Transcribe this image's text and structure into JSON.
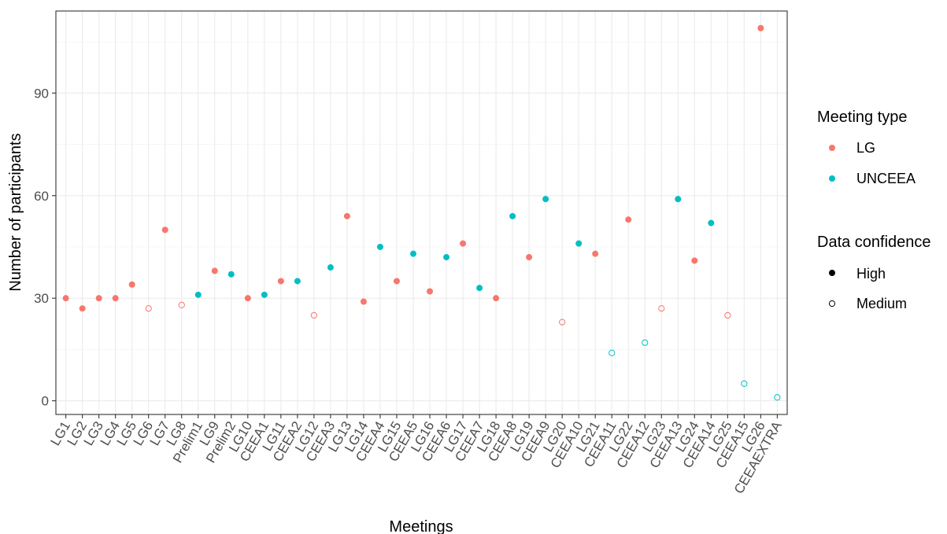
{
  "chart_data": {
    "type": "scatter",
    "xlabel": "Meetings",
    "ylabel": "Number of participants",
    "ylim": [
      -4,
      114
    ],
    "yticks": [
      0,
      30,
      60,
      90
    ],
    "grid": true,
    "legend_position": "right",
    "colors": {
      "LG": "#F8766D",
      "UNCEEA": "#00BFC4"
    },
    "categories": [
      "LG1",
      "LG2",
      "LG3",
      "LG4",
      "LG5",
      "LG6",
      "LG7",
      "LG8",
      "Prelim1",
      "LG9",
      "Prelim2",
      "LG10",
      "CEEA1",
      "LG11",
      "CEEA2",
      "LG12",
      "CEEA3",
      "LG13",
      "LG14",
      "CEEA4",
      "LG15",
      "CEEA5",
      "LG16",
      "CEEA6",
      "LG17",
      "CEEA7",
      "LG18",
      "CEEA8",
      "LG19",
      "CEEA9",
      "LG20",
      "CEEA10",
      "LG21",
      "CEEA11",
      "LG22",
      "CEEA12",
      "LG23",
      "CEEA13",
      "LG24",
      "CEEA14",
      "LG25",
      "CEEA15",
      "LG26",
      "CEEAEXTRA"
    ],
    "points": [
      {
        "x": "LG1",
        "y": 30,
        "type": "LG",
        "confidence": "High"
      },
      {
        "x": "LG2",
        "y": 27,
        "type": "LG",
        "confidence": "High"
      },
      {
        "x": "LG3",
        "y": 30,
        "type": "LG",
        "confidence": "High"
      },
      {
        "x": "LG4",
        "y": 30,
        "type": "LG",
        "confidence": "High"
      },
      {
        "x": "LG5",
        "y": 34,
        "type": "LG",
        "confidence": "High"
      },
      {
        "x": "LG6",
        "y": 27,
        "type": "LG",
        "confidence": "Medium"
      },
      {
        "x": "LG7",
        "y": 50,
        "type": "LG",
        "confidence": "High"
      },
      {
        "x": "LG8",
        "y": 28,
        "type": "LG",
        "confidence": "Medium"
      },
      {
        "x": "Prelim1",
        "y": 31,
        "type": "UNCEEA",
        "confidence": "High"
      },
      {
        "x": "LG9",
        "y": 38,
        "type": "LG",
        "confidence": "High"
      },
      {
        "x": "Prelim2",
        "y": 37,
        "type": "UNCEEA",
        "confidence": "High"
      },
      {
        "x": "LG10",
        "y": 30,
        "type": "LG",
        "confidence": "High"
      },
      {
        "x": "CEEA1",
        "y": 31,
        "type": "UNCEEA",
        "confidence": "High"
      },
      {
        "x": "LG11",
        "y": 35,
        "type": "LG",
        "confidence": "High"
      },
      {
        "x": "CEEA2",
        "y": 35,
        "type": "UNCEEA",
        "confidence": "High"
      },
      {
        "x": "LG12",
        "y": 25,
        "type": "LG",
        "confidence": "Medium"
      },
      {
        "x": "CEEA3",
        "y": 39,
        "type": "UNCEEA",
        "confidence": "High"
      },
      {
        "x": "LG13",
        "y": 54,
        "type": "LG",
        "confidence": "High"
      },
      {
        "x": "LG14",
        "y": 29,
        "type": "LG",
        "confidence": "High"
      },
      {
        "x": "CEEA4",
        "y": 45,
        "type": "UNCEEA",
        "confidence": "High"
      },
      {
        "x": "LG15",
        "y": 35,
        "type": "LG",
        "confidence": "High"
      },
      {
        "x": "CEEA5",
        "y": 43,
        "type": "UNCEEA",
        "confidence": "High"
      },
      {
        "x": "LG16",
        "y": 32,
        "type": "LG",
        "confidence": "High"
      },
      {
        "x": "CEEA6",
        "y": 42,
        "type": "UNCEEA",
        "confidence": "High"
      },
      {
        "x": "LG17",
        "y": 46,
        "type": "LG",
        "confidence": "High"
      },
      {
        "x": "CEEA7",
        "y": 33,
        "type": "UNCEEA",
        "confidence": "High"
      },
      {
        "x": "LG18",
        "y": 30,
        "type": "LG",
        "confidence": "High"
      },
      {
        "x": "CEEA8",
        "y": 54,
        "type": "UNCEEA",
        "confidence": "High"
      },
      {
        "x": "LG19",
        "y": 42,
        "type": "LG",
        "confidence": "High"
      },
      {
        "x": "CEEA9",
        "y": 59,
        "type": "UNCEEA",
        "confidence": "High"
      },
      {
        "x": "LG20",
        "y": 23,
        "type": "LG",
        "confidence": "Medium"
      },
      {
        "x": "CEEA10",
        "y": 46,
        "type": "UNCEEA",
        "confidence": "High"
      },
      {
        "x": "LG21",
        "y": 43,
        "type": "LG",
        "confidence": "High"
      },
      {
        "x": "CEEA11",
        "y": 14,
        "type": "UNCEEA",
        "confidence": "Medium"
      },
      {
        "x": "LG22",
        "y": 53,
        "type": "LG",
        "confidence": "High"
      },
      {
        "x": "CEEA12",
        "y": 17,
        "type": "UNCEEA",
        "confidence": "Medium"
      },
      {
        "x": "LG23",
        "y": 27,
        "type": "LG",
        "confidence": "Medium"
      },
      {
        "x": "CEEA13",
        "y": 59,
        "type": "UNCEEA",
        "confidence": "High"
      },
      {
        "x": "LG24",
        "y": 41,
        "type": "LG",
        "confidence": "High"
      },
      {
        "x": "CEEA14",
        "y": 52,
        "type": "UNCEEA",
        "confidence": "High"
      },
      {
        "x": "LG25",
        "y": 25,
        "type": "LG",
        "confidence": "Medium"
      },
      {
        "x": "CEEA15",
        "y": 5,
        "type": "UNCEEA",
        "confidence": "Medium"
      },
      {
        "x": "LG26",
        "y": 109,
        "type": "LG",
        "confidence": "High"
      },
      {
        "x": "CEEAEXTRA",
        "y": 1,
        "type": "UNCEEA",
        "confidence": "Medium"
      }
    ],
    "legend": {
      "color_title": "Meeting type",
      "color_items": [
        "LG",
        "UNCEEA"
      ],
      "shape_title": "Data confidence",
      "shape_items": [
        "High",
        "Medium"
      ]
    }
  }
}
